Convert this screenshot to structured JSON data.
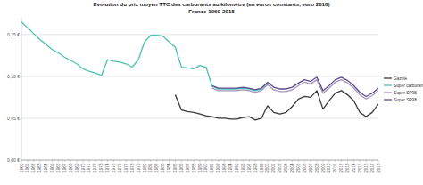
{
  "chart_data": {
    "type": "line",
    "title": "Evolution du prix moyen TTC des carburants au kilomètre (en euros constants, euro 2018)",
    "subtitle": "France 1960-2018",
    "x": [
      1960,
      1961,
      1962,
      1963,
      1964,
      1965,
      1966,
      1967,
      1968,
      1969,
      1970,
      1971,
      1972,
      1973,
      1974,
      1975,
      1976,
      1977,
      1978,
      1979,
      1980,
      1981,
      1982,
      1983,
      1984,
      1985,
      1986,
      1987,
      1988,
      1989,
      1990,
      1991,
      1992,
      1993,
      1994,
      1995,
      1996,
      1997,
      1998,
      1999,
      2000,
      2001,
      2002,
      2003,
      2004,
      2005,
      2006,
      2007,
      2008,
      2009,
      2010,
      2011,
      2012,
      2013,
      2014,
      2015,
      2016,
      2017,
      2018
    ],
    "xlim": [
      1960,
      2018
    ],
    "xticks": [
      1960,
      1961,
      1962,
      1963,
      1964,
      1965,
      1966,
      1967,
      1968,
      1969,
      1970,
      1971,
      1972,
      1973,
      1974,
      1975,
      1976,
      1977,
      1978,
      1979,
      1980,
      1981,
      1982,
      1983,
      1984,
      1985,
      1986,
      1987,
      1988,
      1989,
      1990,
      1991,
      1992,
      1993,
      1994,
      1995,
      1996,
      1997,
      1998,
      1999,
      2000,
      2001,
      2002,
      2003,
      2004,
      2005,
      2006,
      2007,
      2008,
      2009,
      2010,
      2011,
      2012,
      2013,
      2014,
      2015,
      2016,
      2017,
      2018
    ],
    "ylim": [
      0,
      0.17
    ],
    "yticks": [
      {
        "value": 0,
        "label": "0,00 €"
      },
      {
        "value": 0.05,
        "label": "0,05 €"
      },
      {
        "value": 0.1,
        "label": "0,10 €"
      },
      {
        "value": 0.15,
        "label": "0,15 €"
      }
    ],
    "grid": true,
    "legend": "right",
    "series": [
      {
        "name": "Gazole",
        "color": "#3a3a3a",
        "values": [
          null,
          null,
          null,
          null,
          null,
          null,
          null,
          null,
          null,
          null,
          null,
          null,
          null,
          null,
          null,
          null,
          null,
          null,
          null,
          null,
          null,
          null,
          null,
          null,
          null,
          0.078,
          0.06,
          0.058,
          0.057,
          0.055,
          0.053,
          0.052,
          0.05,
          0.05,
          0.049,
          0.049,
          0.051,
          0.052,
          0.048,
          0.05,
          0.065,
          0.057,
          0.055,
          0.057,
          0.064,
          0.073,
          0.076,
          0.075,
          0.083,
          0.061,
          0.071,
          0.08,
          0.083,
          0.078,
          0.071,
          0.057,
          0.052,
          0.057,
          0.067
        ]
      },
      {
        "name": "Super carburant",
        "color": "#4bc1b3",
        "values": [
          0.165,
          0.158,
          0.151,
          0.144,
          0.138,
          0.132,
          0.128,
          0.123,
          0.119,
          0.115,
          0.109,
          0.106,
          0.104,
          0.101,
          0.12,
          0.118,
          0.117,
          0.115,
          0.111,
          0.12,
          0.141,
          0.149,
          0.149,
          0.148,
          0.141,
          0.135,
          0.111,
          0.11,
          0.109,
          0.113,
          0.111,
          0.088,
          0.085,
          0.085,
          0.085,
          0.085,
          0.086,
          0.085,
          0.083,
          0.085,
          0.092,
          null,
          null,
          null,
          null,
          null,
          null,
          null,
          null,
          null,
          null,
          null,
          null,
          null,
          null,
          null,
          null,
          null,
          null
        ]
      },
      {
        "name": "Super SP95",
        "color": "#a397bf",
        "values": [
          null,
          null,
          null,
          null,
          null,
          null,
          null,
          null,
          null,
          null,
          null,
          null,
          null,
          null,
          null,
          null,
          null,
          null,
          null,
          null,
          null,
          null,
          null,
          null,
          null,
          null,
          null,
          null,
          null,
          null,
          null,
          0.086,
          0.083,
          0.083,
          0.083,
          0.083,
          0.084,
          0.083,
          0.081,
          0.083,
          0.09,
          0.084,
          0.082,
          0.082,
          0.084,
          0.089,
          0.093,
          0.091,
          0.096,
          0.08,
          0.086,
          0.093,
          0.096,
          0.092,
          0.086,
          0.078,
          0.073,
          0.077,
          0.083
        ]
      },
      {
        "name": "Super SP98",
        "color": "#5e4d8e",
        "values": [
          null,
          null,
          null,
          null,
          null,
          null,
          null,
          null,
          null,
          null,
          null,
          null,
          null,
          null,
          null,
          null,
          null,
          null,
          null,
          null,
          null,
          null,
          null,
          null,
          null,
          null,
          null,
          null,
          null,
          null,
          null,
          0.089,
          0.086,
          0.086,
          0.086,
          0.086,
          0.087,
          0.086,
          0.084,
          0.086,
          0.093,
          0.087,
          0.085,
          0.085,
          0.087,
          0.092,
          0.096,
          0.094,
          0.099,
          0.083,
          0.089,
          0.096,
          0.099,
          0.095,
          0.089,
          0.081,
          0.076,
          0.08,
          0.086
        ]
      }
    ]
  }
}
